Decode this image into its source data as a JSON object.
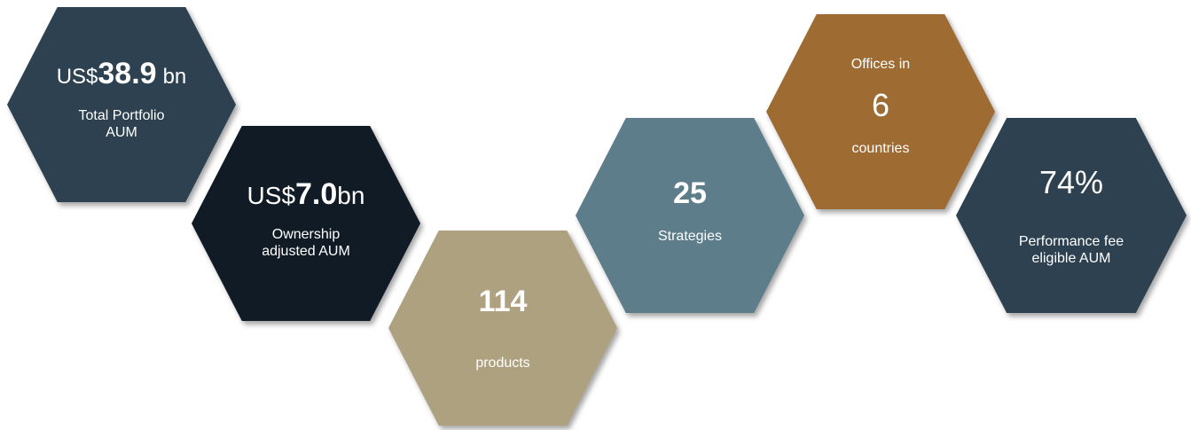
{
  "hexagons": [
    {
      "prefix": "US$",
      "value": "38.9",
      "suffix": "bn",
      "caption": [
        "Total Portfolio",
        "AUM"
      ]
    },
    {
      "prefix": "US$",
      "value": "7.0",
      "suffix": "bn",
      "caption": [
        "Ownership",
        "adjusted AUM"
      ]
    },
    {
      "value": "114",
      "caption": [
        "products"
      ]
    },
    {
      "value": "25",
      "caption": [
        "Strategies"
      ]
    },
    {
      "intro": "Offices in",
      "value": "6",
      "caption": [
        "countries"
      ]
    },
    {
      "value": "74%",
      "caption": [
        "Performance fee",
        "eligible AUM"
      ]
    }
  ]
}
